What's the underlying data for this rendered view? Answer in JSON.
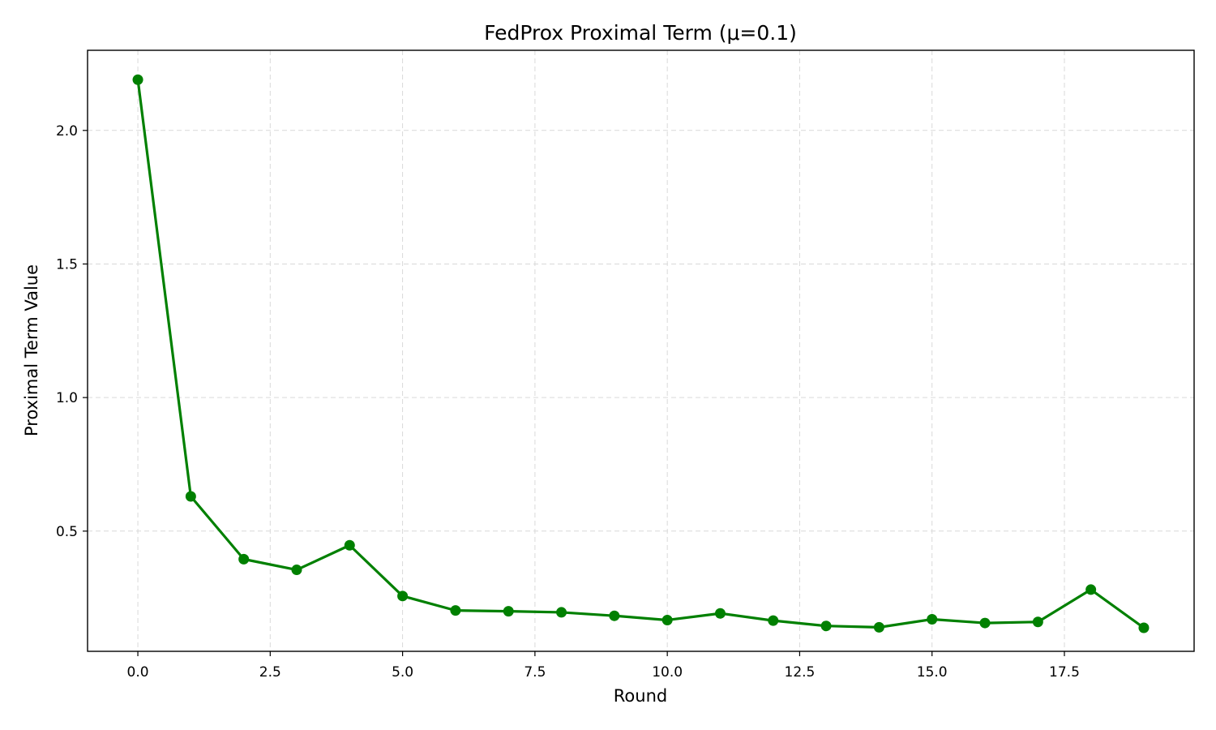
{
  "chart_data": {
    "type": "line",
    "title": "FedProx Proximal Term (μ=0.1)",
    "xlabel": "Round",
    "ylabel": "Proximal Term Value",
    "xlim": [
      -0.95,
      19.95
    ],
    "ylim": [
      0.05,
      2.3
    ],
    "xticks": [
      0,
      2.5,
      5,
      7.5,
      10,
      12.5,
      15,
      17.5
    ],
    "xtick_labels": [
      "0.0",
      "2.5",
      "5.0",
      "7.5",
      "10.0",
      "12.5",
      "15.0",
      "17.5"
    ],
    "yticks": [
      0.5,
      1.0,
      1.5,
      2.0
    ],
    "ytick_labels": [
      "0.5",
      "1.0",
      "1.5",
      "2.0"
    ],
    "grid": true,
    "color": "#008000",
    "x": [
      0,
      1,
      2,
      3,
      4,
      5,
      6,
      7,
      8,
      9,
      10,
      11,
      12,
      13,
      14,
      15,
      16,
      17,
      18,
      19
    ],
    "values": [
      2.19,
      0.63,
      0.395,
      0.355,
      0.447,
      0.257,
      0.203,
      0.2,
      0.196,
      0.183,
      0.167,
      0.192,
      0.165,
      0.145,
      0.14,
      0.17,
      0.156,
      0.16,
      0.281,
      0.138
    ]
  }
}
